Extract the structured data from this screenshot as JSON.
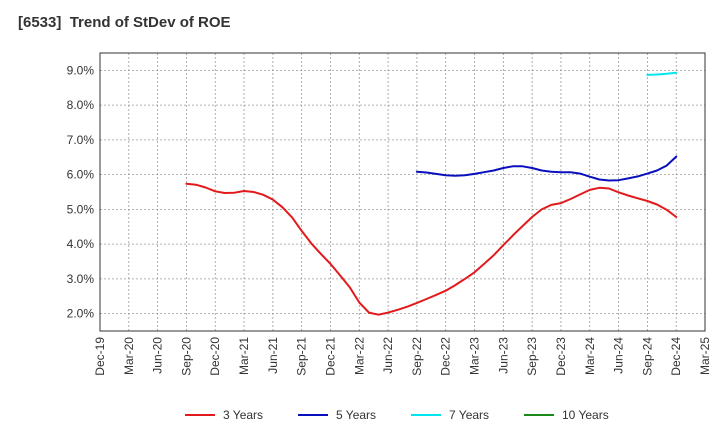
{
  "chart_data": {
    "type": "line",
    "title": "[6533]  Trend of StDev of ROE",
    "xlabel": "",
    "ylabel": "",
    "x_ticks": [
      "Dec-19",
      "Mar-20",
      "Jun-20",
      "Sep-20",
      "Dec-20",
      "Mar-21",
      "Jun-21",
      "Sep-21",
      "Dec-21",
      "Mar-22",
      "Jun-22",
      "Sep-22",
      "Dec-22",
      "Mar-23",
      "Jun-23",
      "Sep-23",
      "Dec-23",
      "Mar-24",
      "Jun-24",
      "Sep-24",
      "Dec-24",
      "Mar-25"
    ],
    "y_ticks": [
      "2.0%",
      "3.0%",
      "4.0%",
      "5.0%",
      "6.0%",
      "7.0%",
      "8.0%",
      "9.0%"
    ],
    "ylim": [
      1.5,
      9.5
    ],
    "y_unit": "%",
    "grid": true,
    "legend_position": "bottom",
    "series": [
      {
        "name": "3 Years",
        "color": "#e31a1c",
        "x": [
          "Sep-20",
          "Oct-20",
          "Nov-20",
          "Dec-20",
          "Jan-21",
          "Feb-21",
          "Mar-21",
          "Apr-21",
          "May-21",
          "Jun-21",
          "Jul-21",
          "Aug-21",
          "Sep-21",
          "Oct-21",
          "Nov-21",
          "Dec-21",
          "Jan-22",
          "Feb-22",
          "Mar-22",
          "Apr-22",
          "May-22",
          "Jun-22",
          "Jul-22",
          "Aug-22",
          "Sep-22",
          "Oct-22",
          "Nov-22",
          "Dec-22",
          "Jan-23",
          "Feb-23",
          "Mar-23",
          "Apr-23",
          "May-23",
          "Jun-23",
          "Jul-23",
          "Aug-23",
          "Sep-23",
          "Oct-23",
          "Nov-23",
          "Dec-23",
          "Jan-24",
          "Feb-24",
          "Mar-24",
          "Apr-24",
          "May-24",
          "Jun-24",
          "Jul-24",
          "Aug-24",
          "Sep-24",
          "Oct-24",
          "Nov-24",
          "Dec-24"
        ],
        "values": [
          5.74,
          5.71,
          5.63,
          5.52,
          5.47,
          5.48,
          5.53,
          5.5,
          5.42,
          5.28,
          5.06,
          4.77,
          4.38,
          4.02,
          3.72,
          3.43,
          3.1,
          2.76,
          2.32,
          2.03,
          1.97,
          2.03,
          2.11,
          2.2,
          2.31,
          2.42,
          2.54,
          2.66,
          2.82,
          3.0,
          3.19,
          3.43,
          3.68,
          3.97,
          4.25,
          4.52,
          4.78,
          5.0,
          5.13,
          5.18,
          5.3,
          5.43,
          5.56,
          5.62,
          5.6,
          5.49,
          5.4,
          5.32,
          5.24,
          5.14,
          4.99,
          4.78
        ]
      },
      {
        "name": "5 Years",
        "color": "#0a0fbe",
        "x": [
          "Sep-22",
          "Oct-22",
          "Nov-22",
          "Dec-22",
          "Jan-23",
          "Feb-23",
          "Mar-23",
          "Apr-23",
          "May-23",
          "Jun-23",
          "Jul-23",
          "Aug-23",
          "Sep-23",
          "Oct-23",
          "Nov-23",
          "Dec-23",
          "Jan-24",
          "Feb-24",
          "Mar-24",
          "Apr-24",
          "May-24",
          "Jun-24",
          "Jul-24",
          "Aug-24",
          "Sep-24",
          "Oct-24",
          "Nov-24",
          "Dec-24"
        ],
        "values": [
          6.08,
          6.06,
          6.02,
          5.98,
          5.97,
          5.98,
          6.02,
          6.07,
          6.12,
          6.19,
          6.24,
          6.24,
          6.19,
          6.12,
          6.08,
          6.07,
          6.07,
          6.03,
          5.94,
          5.86,
          5.83,
          5.84,
          5.89,
          5.95,
          6.03,
          6.12,
          6.26,
          6.52
        ]
      },
      {
        "name": "7 Years",
        "color": "#00e5ee",
        "x": [
          "Sep-24",
          "Oct-24",
          "Nov-24",
          "Dec-24"
        ],
        "values": [
          8.87,
          8.88,
          8.9,
          8.93
        ]
      },
      {
        "name": "10 Years",
        "color": "#1a8a1a",
        "x": [],
        "values": []
      }
    ]
  }
}
